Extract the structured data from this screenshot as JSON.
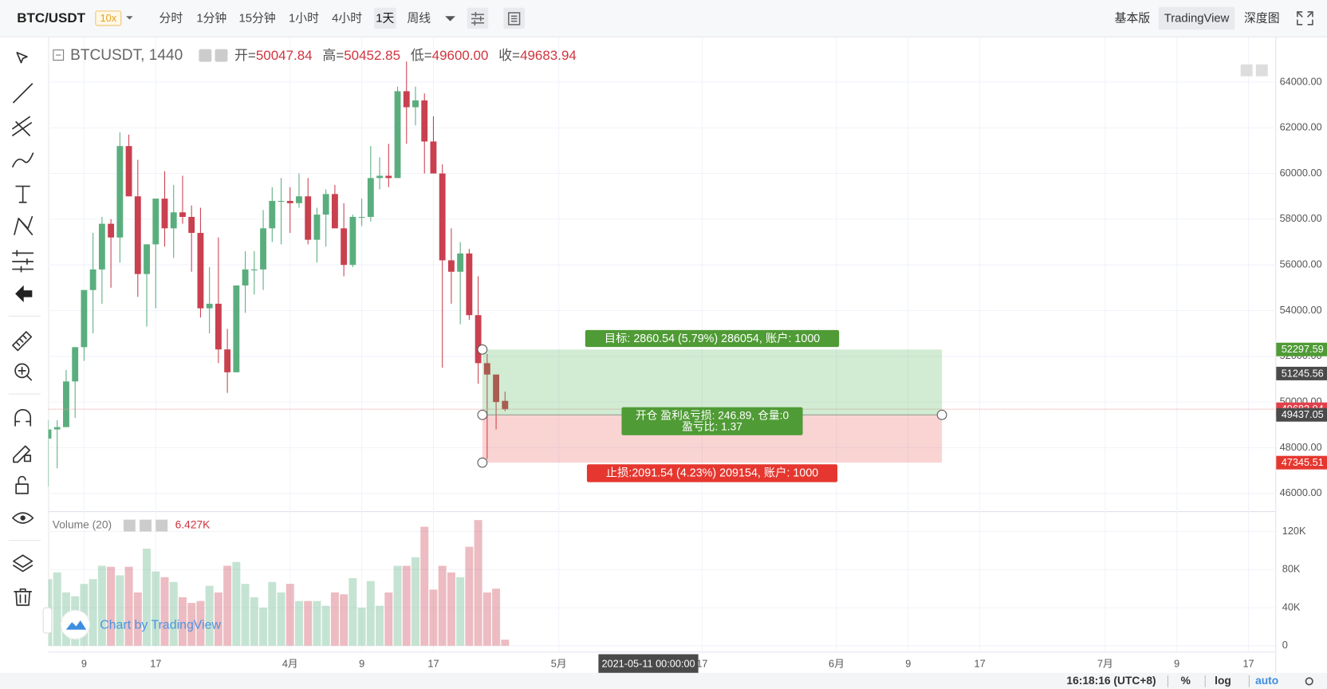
{
  "toolbar": {
    "symbol": "BTC/USDT",
    "leverage": "10x",
    "intervals": [
      "分时",
      "1分钟",
      "15分钟",
      "1小时",
      "4小时",
      "1天",
      "周线"
    ],
    "selected_interval": 5,
    "views": [
      "基本版",
      "TradingView",
      "深度图"
    ],
    "selected_view": 1
  },
  "chart_data": {
    "type": "candlestick",
    "legend": {
      "symbol": "BTCUSDT, 1440",
      "labels": [
        "开=",
        "高=",
        "低=",
        "收="
      ],
      "values": [
        50047.84,
        50452.85,
        49600,
        49683.94
      ],
      "value_labels": [
        "50047.84",
        "50452.85",
        "49600.00",
        "49683.94"
      ]
    },
    "x": [
      "2021-03-05",
      "2021-03-06",
      "2021-03-07",
      "2021-03-08",
      "2021-03-09",
      "2021-03-10",
      "2021-03-11",
      "2021-03-12",
      "2021-03-13",
      "2021-03-14",
      "2021-03-15",
      "2021-03-16",
      "2021-03-17",
      "2021-03-18",
      "2021-03-19",
      "2021-03-20",
      "2021-03-21",
      "2021-03-22",
      "2021-03-23",
      "2021-03-24",
      "2021-03-25",
      "2021-03-26",
      "2021-03-27",
      "2021-03-28",
      "2021-03-29",
      "2021-03-30",
      "2021-03-31",
      "2021-04-01",
      "2021-04-02",
      "2021-04-03",
      "2021-04-04",
      "2021-04-05",
      "2021-04-06",
      "2021-04-07",
      "2021-04-08",
      "2021-04-09",
      "2021-04-10",
      "2021-04-11",
      "2021-04-12",
      "2021-04-13",
      "2021-04-14",
      "2021-04-15",
      "2021-04-16",
      "2021-04-17",
      "2021-04-18",
      "2021-04-19",
      "2021-04-20",
      "2021-04-21",
      "2021-04-22",
      "2021-04-23",
      "2021-04-24",
      "2021-04-25"
    ],
    "open": [
      48400,
      48800,
      48900,
      50900,
      52400,
      54900,
      55800,
      57800,
      57200,
      61200,
      59000,
      55600,
      56900,
      58900,
      57600,
      58300,
      58100,
      57400,
      54100,
      54300,
      52300,
      51300,
      55100,
      55800,
      55800,
      57600,
      58800,
      58800,
      58700,
      59000,
      57100,
      58200,
      59100,
      57600,
      56000,
      58100,
      58100,
      59800,
      59900,
      59800,
      63600,
      62900,
      63200,
      61400,
      60000,
      56200,
      55700,
      56500,
      53800,
      51700,
      51200,
      50047.84
    ],
    "high": [
      49200,
      49200,
      51400,
      52400,
      54900,
      57400,
      58100,
      58000,
      61800,
      61700,
      60600,
      56900,
      58900,
      60100,
      59500,
      59900,
      58600,
      58500,
      55900,
      57200,
      53200,
      55100,
      56600,
      56600,
      58400,
      59400,
      59800,
      59400,
      60000,
      59800,
      58500,
      59300,
      59500,
      58700,
      58200,
      58900,
      61200,
      60700,
      61300,
      63800,
      64900,
      63800,
      63500,
      62500,
      60400,
      57600,
      57000,
      56700,
      55500,
      52100,
      51200,
      50452.85
    ],
    "low": [
      46300,
      47100,
      48900,
      49300,
      51800,
      53000,
      54300,
      55000,
      56100,
      59000,
      54600,
      53300,
      54100,
      56800,
      56300,
      57800,
      55700,
      53700,
      53000,
      51700,
      50400,
      51300,
      53900,
      54700,
      54900,
      57000,
      56900,
      57400,
      58500,
      56900,
      56100,
      56800,
      57700,
      55500,
      55900,
      57700,
      57900,
      59300,
      59400,
      59800,
      61300,
      62100,
      60000,
      60000,
      51500,
      54300,
      53400,
      53600,
      50800,
      47500,
      48800,
      49600
    ],
    "close": [
      48800,
      48900,
      50900,
      52400,
      54900,
      55800,
      57800,
      57200,
      61200,
      59000,
      55600,
      56900,
      58900,
      57600,
      58300,
      58100,
      57400,
      54100,
      54300,
      52300,
      51300,
      55100,
      55800,
      55800,
      57600,
      58800,
      58800,
      58700,
      59000,
      57100,
      58200,
      59100,
      57600,
      56000,
      58100,
      58100,
      59800,
      59900,
      59800,
      63600,
      62900,
      63200,
      61400,
      60000,
      56200,
      55700,
      56500,
      53800,
      51700,
      51200,
      50000,
      49683.94
    ],
    "volume": [
      70000,
      77000,
      56000,
      52000,
      65000,
      70000,
      84000,
      83000,
      74000,
      83000,
      56000,
      102000,
      78000,
      72000,
      67000,
      51000,
      45000,
      47000,
      63000,
      56000,
      84000,
      88000,
      65000,
      51000,
      40000,
      67000,
      56000,
      65000,
      47000,
      47000,
      47000,
      42000,
      56000,
      54000,
      71000,
      40000,
      68000,
      42000,
      56000,
      84000,
      84000,
      93000,
      125000,
      59000,
      84000,
      77000,
      72000,
      104000,
      132000,
      56000,
      60000,
      6427
    ],
    "up_color": "#5aae7e",
    "down_color": "#c9404f",
    "xlim": [
      "2021-03-05",
      "2021-07-20"
    ],
    "xticks": [
      {
        "value": "2021-03-09",
        "label": "9"
      },
      {
        "value": "2021-03-17",
        "label": "17"
      },
      {
        "value": "2021-04-01",
        "label": "4月"
      },
      {
        "value": "2021-04-09",
        "label": "9"
      },
      {
        "value": "2021-04-17",
        "label": "17"
      },
      {
        "value": "2021-05-01",
        "label": "5月"
      },
      {
        "value": "2021-05-17",
        "label": "17"
      },
      {
        "value": "2021-06-01",
        "label": "6月"
      },
      {
        "value": "2021-06-09",
        "label": "9"
      },
      {
        "value": "2021-06-17",
        "label": "17"
      },
      {
        "value": "2021-07-01",
        "label": "7月"
      },
      {
        "value": "2021-07-09",
        "label": "9"
      },
      {
        "value": "2021-07-17",
        "label": "17"
      }
    ],
    "ylim": [
      45220,
      65960
    ],
    "yticks": [
      {
        "value": 46000,
        "label": "46000.00"
      },
      {
        "value": 48000,
        "label": "48000.00"
      },
      {
        "value": 50000,
        "label": "50000.00"
      },
      {
        "value": 52000,
        "label": "52000.00"
      },
      {
        "value": 54000,
        "label": "54000.00"
      },
      {
        "value": 56000,
        "label": "56000.00"
      },
      {
        "value": 58000,
        "label": "58000.00"
      },
      {
        "value": 60000,
        "label": "60000.00"
      },
      {
        "value": 62000,
        "label": "62000.00"
      },
      {
        "value": 64000,
        "label": "64000.00"
      }
    ],
    "vlim": [
      0,
      141300
    ],
    "vticks": [
      0,
      {
        "value": 40000,
        "label": "40K"
      },
      {
        "value": 80000,
        "label": "80K"
      },
      {
        "value": 120000,
        "label": "120K"
      }
    ],
    "grid": true,
    "volume_legend": {
      "title": "Volume (20)",
      "value_label": "6.427K"
    },
    "crosshair": {
      "date_label": "2021-05-11 00:00:00",
      "price": 51245.56
    },
    "position": {
      "entry": 49437.05,
      "target": 52297.59,
      "stop": 47345.51,
      "target_label": "目标: 2860.54 (5.79%) 286054, 账户: 1000",
      "entry_label": [
        "开仓 盈利&亏损: 246.89, 仓量:0",
        "盈亏比: 1.37"
      ],
      "stop_label": "止损:2091.54 (4.23%) 209154, 账户: 1000"
    }
  },
  "status": {
    "time": "16:18:16 (UTC+8)",
    "options": [
      "%",
      "log",
      "auto"
    ],
    "selected_option": 2
  },
  "watermark": "Chart by TradingView"
}
